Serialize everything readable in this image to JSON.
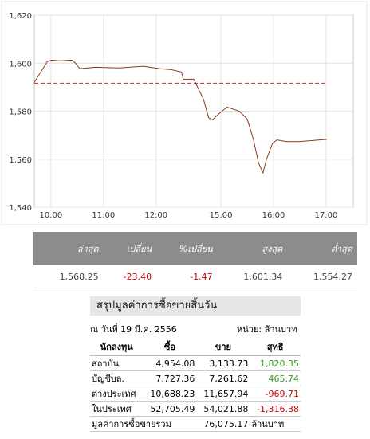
{
  "chart_data": {
    "type": "line",
    "x": [
      -19,
      -4,
      1,
      10,
      24,
      28,
      33,
      51,
      78,
      105,
      124,
      137,
      149,
      151,
      163,
      166,
      174,
      180,
      184,
      192,
      201,
      215,
      224,
      231,
      237,
      242,
      246,
      253,
      258,
      269,
      283,
      315
    ],
    "series": [
      {
        "color": "#8b3a1a",
        "values": [
          1592,
          1600.7,
          1601.3,
          1601,
          1601.3,
          1600,
          1597.7,
          1598.3,
          1598,
          1598.7,
          1597.7,
          1597.3,
          1596.3,
          1593.3,
          1593.3,
          1591,
          1585,
          1577.3,
          1576.3,
          1579,
          1581.7,
          1580,
          1576.7,
          1568.3,
          1558.3,
          1554.3,
          1560,
          1566.7,
          1568,
          1567.3,
          1567.3,
          1568.25
        ]
      }
    ],
    "reference_line": 1591.65,
    "reference_color": "#cc2222",
    "xlim": [
      -19,
      345
    ],
    "xticks": [
      {
        "value": 0,
        "label": "10:00"
      },
      {
        "value": 60,
        "label": "11:00"
      },
      {
        "value": 120,
        "label": "12:00"
      },
      {
        "value": 194,
        "label": "15:00"
      },
      {
        "value": 254,
        "label": "16:00"
      },
      {
        "value": 314,
        "label": "17:00"
      }
    ],
    "ylim": [
      1540,
      1620
    ],
    "yticks": [
      {
        "value": 1540,
        "label": "1,540"
      },
      {
        "value": 1560,
        "label": "1,560"
      },
      {
        "value": 1580,
        "label": "1,580"
      },
      {
        "value": 1600,
        "label": "1,600"
      },
      {
        "value": 1620,
        "label": "1,620"
      }
    ],
    "grid": true
  },
  "quote": {
    "headers": [
      "ล่าสุด",
      "เปลี่ยน",
      "%เปลี่ยน",
      "สูงสุด",
      "ต่ำสุด"
    ],
    "values": [
      "1,568.25",
      "-23.40",
      "-1.47",
      "1,601.34",
      "1,554.27"
    ]
  },
  "summary": {
    "title": "สรุปมูลค่าการซื้อขายสิ้นวัน",
    "date": "ณ วันที่ 19 มี.ค. 2556",
    "unit": "หน่วย: ล้านบาท",
    "headers": [
      "นักลงทุน",
      "ซื้อ",
      "ขาย",
      "สุทธิ"
    ],
    "rows": [
      [
        "สถาบัน",
        "4,954.08",
        "3,133.73",
        "1,820.35"
      ],
      [
        "บัญชีบล.",
        "7,727.36",
        "7,261.62",
        "465.74"
      ],
      [
        "ต่างประเทศ",
        "10,688.23",
        "11,657.94",
        "-969.71"
      ],
      [
        "ในประเทศ",
        "52,705.49",
        "54,021.88",
        "-1,316.38"
      ]
    ],
    "total": [
      "มูลค่าการซื้อขายรวม",
      "76,075.17",
      "ล้านบาท"
    ]
  }
}
